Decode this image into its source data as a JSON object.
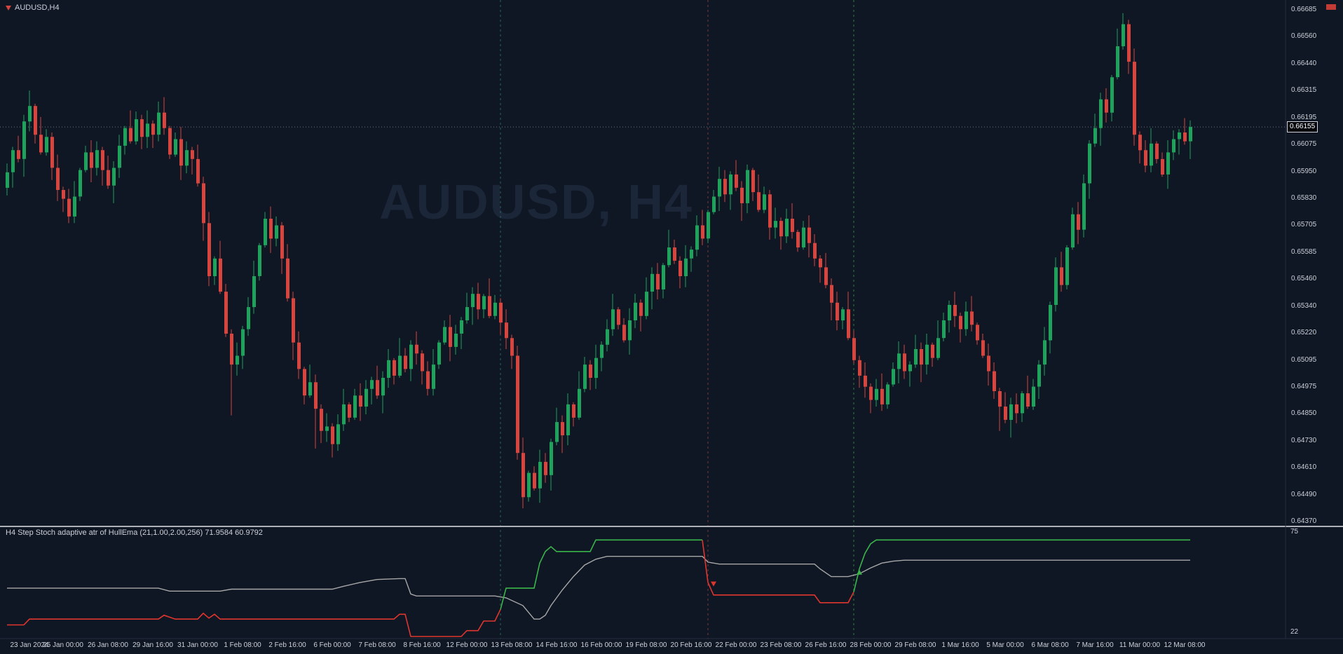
{
  "window": {
    "symbol_label": "AUDUSD,H4",
    "watermark_text": "AUDUSD, H4"
  },
  "colors": {
    "background": "#0f1624",
    "bull": "#1fa35c",
    "bear": "#d8453e",
    "axis_text": "#ccd1d9",
    "separator": "#aeb2b8",
    "current_price_line": "#6e7683",
    "watermark": "#1b2739"
  },
  "chart_data": [
    {
      "type": "candlestick",
      "symbol": "AUDUSD",
      "timeframe": "H4",
      "price_top": 0.66685,
      "price_bottom": 0.6437,
      "price_labels": [
        "0.66685",
        "0.66560",
        "0.66440",
        "0.66315",
        "0.66195",
        "0.66075",
        "0.65950",
        "0.65830",
        "0.65705",
        "0.65585",
        "0.65460",
        "0.65340",
        "0.65220",
        "0.65095",
        "0.64975",
        "0.64850",
        "0.64730",
        "0.64610",
        "0.64490",
        "0.64370"
      ],
      "current_price": 0.66155,
      "current_price_label": "0.66155",
      "time_labels": [
        "23 Jan 2024",
        "25 Jan 00:00",
        "26 Jan 08:00",
        "29 Jan 16:00",
        "31 Jan 00:00",
        "1 Feb 08:00",
        "2 Feb 16:00",
        "6 Feb 00:00",
        "7 Feb 08:00",
        "8 Feb 16:00",
        "12 Feb 00:00",
        "13 Feb 08:00",
        "14 Feb 16:00",
        "16 Feb 00:00",
        "19 Feb 08:00",
        "20 Feb 16:00",
        "22 Feb 00:00",
        "23 Feb 08:00",
        "26 Feb 16:00",
        "28 Feb 00:00",
        "29 Feb 08:00",
        "1 Mar 16:00",
        "5 Mar 00:00",
        "6 Mar 08:00",
        "7 Mar 16:00",
        "11 Mar 00:00",
        "12 Mar 08:00"
      ],
      "first_label_candle_index": 2,
      "candles_per_label": 8,
      "first_open": 0.6588,
      "closes": [
        0.6595,
        0.6605,
        0.6601,
        0.6618,
        0.6625,
        0.6612,
        0.6604,
        0.6611,
        0.6597,
        0.6587,
        0.6583,
        0.6575,
        0.6584,
        0.6596,
        0.6604,
        0.6597,
        0.6605,
        0.6596,
        0.6589,
        0.6597,
        0.6607,
        0.6615,
        0.6609,
        0.6619,
        0.6611,
        0.6617,
        0.6612,
        0.6622,
        0.6615,
        0.6603,
        0.661,
        0.6598,
        0.6605,
        0.6601,
        0.659,
        0.6572,
        0.6548,
        0.6556,
        0.6541,
        0.6522,
        0.6508,
        0.6512,
        0.6524,
        0.6534,
        0.6548,
        0.6562,
        0.6574,
        0.6565,
        0.6571,
        0.6556,
        0.6538,
        0.6518,
        0.6506,
        0.6494,
        0.65,
        0.6488,
        0.6478,
        0.648,
        0.6472,
        0.6481,
        0.649,
        0.6484,
        0.6494,
        0.6489,
        0.6497,
        0.6501,
        0.6494,
        0.6502,
        0.651,
        0.6503,
        0.6512,
        0.6506,
        0.6517,
        0.6513,
        0.6505,
        0.6497,
        0.6508,
        0.6518,
        0.6525,
        0.6516,
        0.6522,
        0.6528,
        0.6534,
        0.654,
        0.6533,
        0.6539,
        0.653,
        0.6536,
        0.6527,
        0.652,
        0.6512,
        0.6468,
        0.6448,
        0.6459,
        0.6452,
        0.6464,
        0.6458,
        0.6473,
        0.6482,
        0.6476,
        0.649,
        0.6484,
        0.6497,
        0.6508,
        0.6502,
        0.6511,
        0.6517,
        0.6524,
        0.6533,
        0.6526,
        0.6519,
        0.6528,
        0.6536,
        0.653,
        0.6541,
        0.6549,
        0.6542,
        0.6553,
        0.6561,
        0.6555,
        0.6548,
        0.6556,
        0.656,
        0.6571,
        0.6565,
        0.6577,
        0.6584,
        0.6592,
        0.6585,
        0.6594,
        0.6588,
        0.6581,
        0.6596,
        0.6586,
        0.6578,
        0.6585,
        0.657,
        0.6573,
        0.6566,
        0.6574,
        0.6568,
        0.6561,
        0.657,
        0.6563,
        0.6556,
        0.6552,
        0.6544,
        0.6536,
        0.6528,
        0.6533,
        0.652,
        0.651,
        0.6503,
        0.6498,
        0.6492,
        0.6497,
        0.649,
        0.6499,
        0.6506,
        0.6513,
        0.6505,
        0.6508,
        0.6515,
        0.6508,
        0.6517,
        0.6511,
        0.652,
        0.6528,
        0.6535,
        0.653,
        0.6524,
        0.6532,
        0.6526,
        0.6519,
        0.6512,
        0.6505,
        0.6496,
        0.6489,
        0.6483,
        0.649,
        0.6486,
        0.6495,
        0.6489,
        0.6498,
        0.6508,
        0.6519,
        0.6535,
        0.6552,
        0.6544,
        0.6561,
        0.6576,
        0.6569,
        0.659,
        0.6608,
        0.6615,
        0.6628,
        0.6622,
        0.6638,
        0.6652,
        0.6662,
        0.6645,
        0.6612,
        0.6605,
        0.6598,
        0.6608,
        0.6601,
        0.6594,
        0.6604,
        0.661,
        0.6613,
        0.6609,
        0.66155
      ],
      "wick_pattern": [
        0.0004,
        0.00015,
        0.00065,
        0.0003,
        0.0005,
        0.0001,
        0.0008,
        0.00035,
        0.0002,
        0.0006,
        0.00015,
        0.00045,
        0.0007,
        0.0001,
        0.0003,
        0.00055
      ],
      "wick_overrides": {
        "4": {
          "high": 0.6632
        },
        "27": {
          "high": 0.6627
        },
        "40": {
          "low": 0.6485
        },
        "55": {
          "low": 0.647
        },
        "92": {
          "low": 0.6443
        },
        "132": {
          "high": 0.65985
        },
        "177": {
          "low": 0.6478
        },
        "199": {
          "high": 0.6667
        }
      },
      "event_vlines": [
        {
          "candle_index": 88,
          "color": "#2b665c"
        },
        {
          "candle_index": 125,
          "color": "#7d383c"
        },
        {
          "candle_index": 151,
          "color": "#2f7d41"
        }
      ]
    },
    {
      "type": "line",
      "title": "H4  Step Stoch adaptive atr of HullEma (21,1.00,2.00,256) 71.9584 60.9792",
      "ylim": [
        22,
        75
      ],
      "scale_labels": [
        "75",
        "22"
      ],
      "current_values": [
        71.9584,
        60.9792
      ],
      "series": [
        {
          "name": "stoch-main-step-line",
          "segments": [
            {
              "color": "#df362d",
              "points": [
                [
                  0,
                  28
                ],
                [
                  3,
                  28
                ],
                [
                  4,
                  31
                ],
                [
                  27,
                  31
                ],
                [
                  28,
                  33
                ],
                [
                  30,
                  31
                ],
                [
                  34,
                  31
                ],
                [
                  35,
                  34
                ],
                [
                  36,
                  31.5
                ],
                [
                  37,
                  33.5
                ],
                [
                  38,
                  31
                ],
                [
                  69,
                  31
                ],
                [
                  70,
                  33.5
                ],
                [
                  71,
                  33.5
                ],
                [
                  72,
                  22
                ],
                [
                  81,
                  22
                ],
                [
                  82,
                  25
                ],
                [
                  84,
                  25
                ],
                [
                  85,
                  30
                ],
                [
                  87,
                  30
                ],
                [
                  88,
                  36
                ]
              ]
            },
            {
              "color": "#3ab54a",
              "points": [
                [
                  88,
                  36
                ],
                [
                  89,
                  47
                ],
                [
                  94,
                  47
                ],
                [
                  95,
                  60
                ],
                [
                  96,
                  66
                ],
                [
                  97,
                  68.5
                ],
                [
                  98,
                  66
                ],
                [
                  104,
                  66
                ],
                [
                  105,
                  72
                ],
                [
                  124,
                  72
                ]
              ]
            },
            {
              "color": "#df362d",
              "points": [
                [
                  124,
                  72
                ],
                [
                  125,
                  50
                ],
                [
                  126,
                  43.5
                ],
                [
                  144,
                  43.5
                ],
                [
                  145,
                  39.5
                ],
                [
                  150,
                  39.5
                ],
                [
                  151,
                  45
                ]
              ]
            },
            {
              "color": "#3ab54a",
              "points": [
                [
                  151,
                  45
                ],
                [
                  152,
                  57
                ],
                [
                  153,
                  65
                ],
                [
                  154,
                  70
                ],
                [
                  155,
                  72
                ],
                [
                  211,
                  72
                ]
              ]
            }
          ]
        },
        {
          "name": "signal-line",
          "color": "#a7a7a7",
          "points": [
            [
              0,
              47
            ],
            [
              27,
              47
            ],
            [
              29,
              45.5
            ],
            [
              38,
              45.5
            ],
            [
              40,
              46.5
            ],
            [
              58,
              46.5
            ],
            [
              60,
              48
            ],
            [
              63,
              50
            ],
            [
              66,
              51.5
            ],
            [
              70,
              52
            ],
            [
              71,
              52
            ],
            [
              72,
              44
            ],
            [
              73,
              43
            ],
            [
              87,
              43
            ],
            [
              89,
              42
            ],
            [
              92,
              38
            ],
            [
              94,
              31
            ],
            [
              95,
              31
            ],
            [
              96,
              33
            ],
            [
              97,
              38
            ],
            [
              99,
              46
            ],
            [
              101,
              53
            ],
            [
              103,
              59
            ],
            [
              105,
              62
            ],
            [
              107,
              63.5
            ],
            [
              124,
              63.5
            ],
            [
              125,
              60.5
            ],
            [
              127,
              59.5
            ],
            [
              144,
              59.5
            ],
            [
              145,
              57
            ],
            [
              147,
              53
            ],
            [
              150,
              53
            ],
            [
              152,
              54.5
            ],
            [
              154,
              57.5
            ],
            [
              156,
              60
            ],
            [
              158,
              61
            ],
            [
              160,
              61.5
            ],
            [
              211,
              61.5
            ]
          ]
        }
      ],
      "arrows": [
        {
          "index": 126,
          "value": 49,
          "dir": "down",
          "color": "#df362d"
        },
        {
          "index": 152,
          "value": 55.5,
          "dir": "up",
          "color": "#3ab54a"
        }
      ]
    }
  ]
}
